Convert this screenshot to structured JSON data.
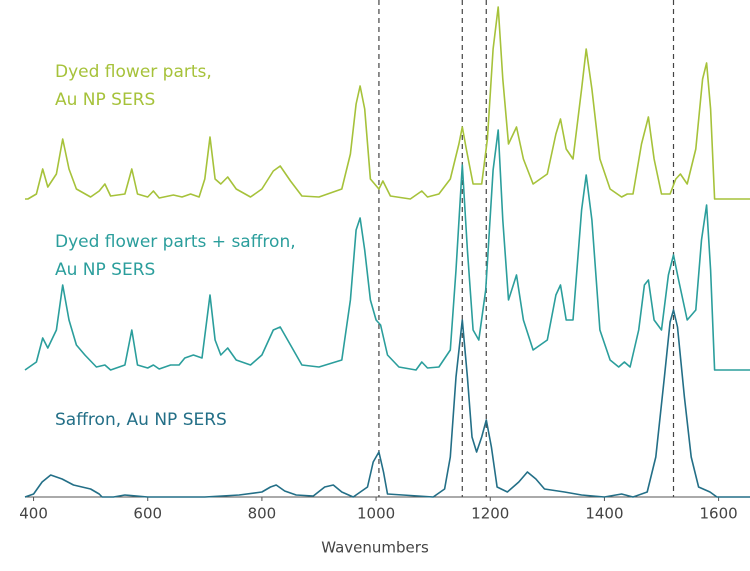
{
  "chart_data": {
    "type": "line",
    "x_label": "Wavenumbers",
    "xlim": [
      385,
      1655
    ],
    "xticks": [
      400,
      600,
      800,
      1000,
      1200,
      1400,
      1600
    ],
    "reference_lines": [
      1005,
      1151,
      1193,
      1521
    ],
    "series": [
      {
        "name": [
          "Dyed flower parts,",
          "Au NP SERS"
        ],
        "color": "#a6c23a",
        "x": [
          385,
          390,
          405,
          416,
          425,
          440,
          451,
          462,
          475,
          500,
          515,
          525,
          535,
          560,
          572,
          582,
          600,
          610,
          620,
          645,
          660,
          675,
          690,
          700,
          709,
          718,
          728,
          740,
          755,
          780,
          800,
          820,
          832,
          850,
          870,
          900,
          940,
          955,
          965,
          972,
          980,
          990,
          1005,
          1012,
          1025,
          1060,
          1080,
          1090,
          1110,
          1130,
          1145,
          1151,
          1158,
          1170,
          1185,
          1195,
          1205,
          1214,
          1222,
          1232,
          1246,
          1258,
          1275,
          1300,
          1315,
          1323,
          1333,
          1345,
          1360,
          1368,
          1378,
          1392,
          1410,
          1430,
          1440,
          1450,
          1465,
          1477,
          1487,
          1500,
          1515,
          1525,
          1533,
          1545,
          1560,
          1572,
          1579,
          1586,
          1593,
          1655
        ],
        "values": [
          0,
          0,
          5,
          30,
          12,
          25,
          60,
          30,
          10,
          2,
          8,
          15,
          3,
          5,
          30,
          5,
          2,
          8,
          1,
          4,
          2,
          5,
          2,
          20,
          62,
          20,
          15,
          22,
          10,
          2,
          10,
          28,
          33,
          18,
          3,
          2,
          10,
          45,
          95,
          113,
          90,
          20,
          10,
          18,
          3,
          0,
          8,
          2,
          5,
          20,
          55,
          72,
          50,
          15,
          15,
          60,
          150,
          192,
          120,
          55,
          72,
          40,
          15,
          25,
          65,
          80,
          50,
          40,
          110,
          150,
          110,
          40,
          10,
          2,
          5,
          5,
          55,
          82,
          40,
          5,
          5,
          20,
          25,
          15,
          50,
          120,
          136,
          90,
          0,
          0
        ]
      },
      {
        "name": [
          "Dyed flower parts + saffron,",
          "Au NP SERS"
        ],
        "color": "#2b9e9c",
        "x": [
          385,
          405,
          416,
          425,
          440,
          451,
          462,
          475,
          490,
          510,
          525,
          535,
          560,
          572,
          582,
          600,
          610,
          620,
          640,
          655,
          665,
          680,
          695,
          709,
          718,
          728,
          740,
          755,
          780,
          800,
          820,
          832,
          850,
          870,
          900,
          940,
          955,
          965,
          972,
          980,
          990,
          1000,
          1008,
          1020,
          1040,
          1070,
          1080,
          1090,
          1110,
          1130,
          1140,
          1151,
          1160,
          1170,
          1180,
          1192,
          1205,
          1214,
          1222,
          1232,
          1246,
          1258,
          1275,
          1300,
          1315,
          1323,
          1333,
          1345,
          1360,
          1368,
          1378,
          1392,
          1410,
          1425,
          1435,
          1445,
          1460,
          1470,
          1477,
          1487,
          1500,
          1512,
          1521,
          1530,
          1545,
          1560,
          1570,
          1579,
          1586,
          1593,
          1655
        ],
        "values": [
          0,
          8,
          32,
          22,
          40,
          85,
          50,
          25,
          15,
          3,
          5,
          0,
          5,
          40,
          5,
          2,
          5,
          1,
          5,
          5,
          12,
          15,
          12,
          75,
          30,
          15,
          22,
          10,
          5,
          15,
          40,
          43,
          25,
          5,
          3,
          10,
          70,
          140,
          152,
          120,
          70,
          50,
          45,
          15,
          3,
          0,
          8,
          2,
          3,
          20,
          100,
          205,
          120,
          40,
          30,
          80,
          200,
          240,
          150,
          70,
          95,
          50,
          20,
          30,
          75,
          85,
          50,
          50,
          160,
          195,
          150,
          40,
          10,
          3,
          8,
          3,
          40,
          85,
          90,
          50,
          40,
          95,
          115,
          90,
          50,
          60,
          130,
          165,
          100,
          0,
          0
        ]
      },
      {
        "name": [
          "Saffron, Au NP SERS"
        ],
        "color": "#236f87",
        "x": [
          385,
          400,
          415,
          430,
          450,
          470,
          500,
          515,
          520,
          540,
          560,
          600,
          700,
          760,
          800,
          815,
          825,
          840,
          860,
          890,
          910,
          925,
          940,
          960,
          985,
          995,
          1005,
          1013,
          1020,
          1100,
          1120,
          1130,
          1140,
          1151,
          1160,
          1168,
          1176,
          1185,
          1193,
          1202,
          1212,
          1230,
          1250,
          1265,
          1280,
          1295,
          1330,
          1360,
          1400,
          1430,
          1450,
          1475,
          1490,
          1505,
          1515,
          1521,
          1528,
          1540,
          1552,
          1565,
          1585,
          1597,
          1655
        ],
        "values": [
          0,
          3,
          15,
          22,
          18,
          12,
          8,
          3,
          0,
          0,
          2,
          0,
          0,
          2,
          5,
          10,
          12,
          6,
          2,
          1,
          10,
          12,
          5,
          0,
          10,
          35,
          45,
          25,
          3,
          0,
          8,
          40,
          120,
          177,
          120,
          60,
          45,
          60,
          77,
          50,
          10,
          5,
          15,
          25,
          18,
          8,
          5,
          2,
          0,
          3,
          0,
          5,
          40,
          120,
          175,
          187,
          170,
          100,
          40,
          10,
          5,
          0,
          0
        ]
      }
    ]
  }
}
